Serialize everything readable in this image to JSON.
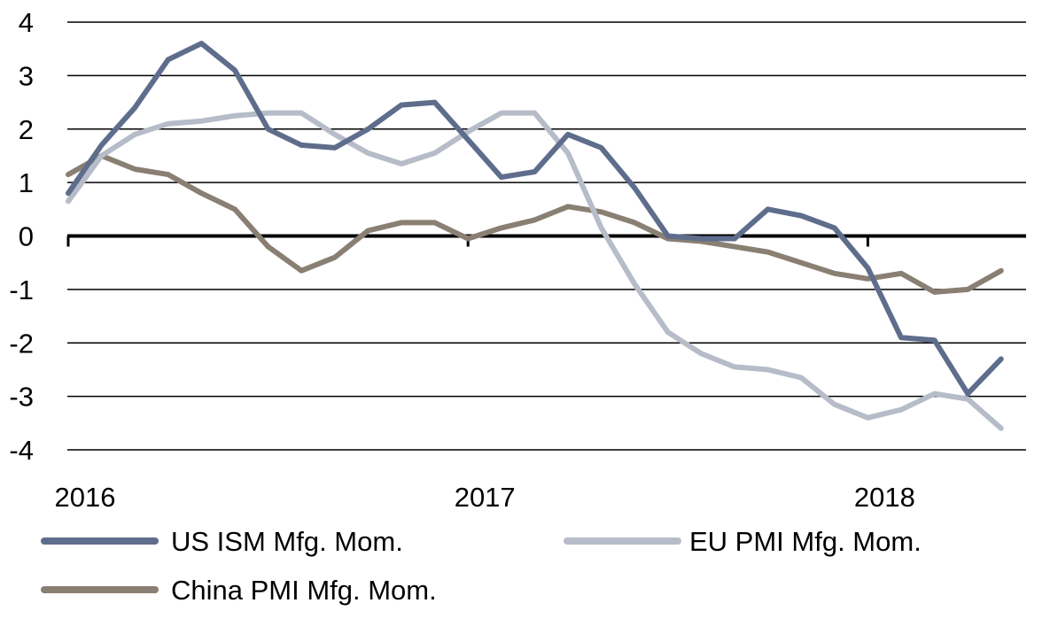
{
  "chart_data": {
    "type": "line",
    "title": "",
    "xlabel": "",
    "ylabel": "",
    "ylim": [
      -4,
      4
    ],
    "yticks": [
      "4",
      "3",
      "2",
      "1",
      "0",
      "-1",
      "-2",
      "-3",
      "-4"
    ],
    "xticks": [
      {
        "label": "2016",
        "x": "2016-01"
      },
      {
        "label": "2017",
        "x": "2017-01"
      },
      {
        "label": "2018",
        "x": "2018-01"
      }
    ],
    "x": [
      "2016-01",
      "2016-02",
      "2016-03",
      "2016-04",
      "2016-05",
      "2016-06",
      "2016-07",
      "2016-08",
      "2016-09",
      "2016-10",
      "2016-11",
      "2016-12",
      "2017-01",
      "2017-02",
      "2017-03",
      "2017-04",
      "2017-05",
      "2017-06",
      "2017-07",
      "2017-08",
      "2017-09",
      "2017-10",
      "2017-11",
      "2017-12",
      "2018-01",
      "2018-02",
      "2018-03",
      "2018-04",
      "2018-05"
    ],
    "grid": true,
    "legend_position": "bottom",
    "series": [
      {
        "name": "US ISM Mfg. Mom.",
        "color": "#5f6d8c",
        "values": [
          0.8,
          1.7,
          2.4,
          3.3,
          3.6,
          3.1,
          2.0,
          1.7,
          1.65,
          2.0,
          2.45,
          2.5,
          1.8,
          1.1,
          1.2,
          1.9,
          1.65,
          0.9,
          0.0,
          -0.05,
          -0.05,
          0.5,
          0.38,
          0.15,
          -0.6,
          -1.9,
          -1.95,
          -2.95,
          -2.3
        ]
      },
      {
        "name": "EU PMI Mfg. Mom.",
        "color": "#b6bcc8",
        "values": [
          0.65,
          1.5,
          1.9,
          2.1,
          2.15,
          2.25,
          2.3,
          2.3,
          1.9,
          1.55,
          1.35,
          1.55,
          1.95,
          2.3,
          2.3,
          1.55,
          0.15,
          -0.9,
          -1.8,
          -2.2,
          -2.45,
          -2.5,
          -2.65,
          -3.15,
          -3.4,
          -3.25,
          -2.95,
          -3.05,
          -3.6
        ]
      },
      {
        "name": "China PMI Mfg. Mom.",
        "color": "#8a7f73",
        "values": [
          1.15,
          1.5,
          1.25,
          1.15,
          0.8,
          0.5,
          -0.2,
          -0.65,
          -0.4,
          0.1,
          0.25,
          0.25,
          -0.05,
          0.15,
          0.3,
          0.55,
          0.45,
          0.25,
          -0.05,
          -0.1,
          -0.2,
          -0.3,
          -0.5,
          -0.7,
          -0.8,
          -0.7,
          -1.05,
          -1.0,
          -0.65
        ]
      }
    ]
  }
}
